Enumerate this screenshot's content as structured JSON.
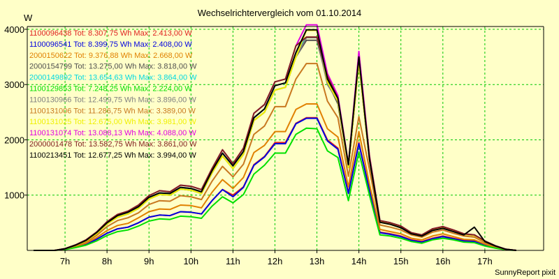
{
  "chart_data": {
    "type": "line",
    "title": "Wechselrichtervergleich vom 01.10.2014",
    "ylabel": "W",
    "xlabel": "",
    "credit": "SunnyReport pixit",
    "ylim": [
      0,
      4050
    ],
    "xlim": [
      6.1,
      18.4
    ],
    "yticks": [
      1000,
      2000,
      3000,
      4000
    ],
    "xticks": [
      {
        "value": 7,
        "label": "7h"
      },
      {
        "value": 8,
        "label": "8h"
      },
      {
        "value": 9,
        "label": "9h"
      },
      {
        "value": 10,
        "label": "10h"
      },
      {
        "value": 11,
        "label": "11h"
      },
      {
        "value": 12,
        "label": "12h"
      },
      {
        "value": 13,
        "label": "13h"
      },
      {
        "value": 14,
        "label": "14h"
      },
      {
        "value": 15,
        "label": "15h"
      },
      {
        "value": 16,
        "label": "16h"
      },
      {
        "value": 17,
        "label": "17h"
      }
    ],
    "grid": true,
    "legend_position": "top-left",
    "x": [
      6.25,
      6.5,
      6.75,
      7.0,
      7.25,
      7.5,
      7.75,
      8.0,
      8.25,
      8.5,
      8.75,
      9.0,
      9.25,
      9.5,
      9.75,
      10.0,
      10.25,
      10.5,
      10.75,
      11.0,
      11.25,
      11.5,
      11.75,
      12.0,
      12.25,
      12.5,
      12.75,
      13.0,
      13.25,
      13.5,
      13.75,
      14.0,
      14.25,
      14.5,
      14.75,
      15.0,
      15.25,
      15.5,
      15.75,
      16.0,
      16.25,
      16.5,
      16.75,
      17.0,
      17.25,
      17.5,
      17.75
    ],
    "series": [
      {
        "name": "1100096438",
        "color": "#e02020",
        "legend": "1100096438 Tot: 8.307,75 Wh Max: 2.413,00 W",
        "values": [
          0,
          0,
          0,
          20,
          60,
          110,
          200,
          310,
          390,
          420,
          500,
          600,
          640,
          630,
          700,
          690,
          660,
          900,
          1100,
          1000,
          1150,
          1550,
          1700,
          1950,
          1950,
          2300,
          2400,
          2400,
          2000,
          1850,
          1050,
          1950,
          1100,
          330,
          300,
          260,
          190,
          160,
          220,
          260,
          220,
          180,
          170,
          100,
          50,
          15,
          0
        ]
      },
      {
        "name": "1100096541",
        "color": "#0000e0",
        "legend": "1100096541 Tot: 8.399,75 Wh Max: 2.408,00 W",
        "values": [
          0,
          0,
          0,
          20,
          60,
          110,
          200,
          310,
          390,
          420,
          500,
          600,
          640,
          630,
          700,
          690,
          660,
          900,
          1100,
          970,
          1140,
          1540,
          1690,
          1930,
          1930,
          2290,
          2390,
          2390,
          1980,
          1830,
          1030,
          1930,
          1090,
          320,
          290,
          250,
          180,
          150,
          210,
          250,
          210,
          170,
          160,
          95,
          45,
          12,
          0
        ]
      },
      {
        "name": "2000150622",
        "color": "#e08000",
        "legend": "2000150622 Tot: 9.376,88 Wh Max: 2.668,00 W",
        "values": [
          0,
          0,
          0,
          25,
          70,
          130,
          230,
          360,
          450,
          490,
          590,
          700,
          750,
          740,
          820,
          810,
          770,
          1050,
          1280,
          1120,
          1320,
          1770,
          1900,
          2150,
          2150,
          2550,
          2650,
          2650,
          2200,
          2050,
          1150,
          2150,
          1200,
          380,
          340,
          300,
          220,
          190,
          260,
          300,
          250,
          200,
          190,
          115,
          55,
          15,
          0
        ]
      },
      {
        "name": "2000154799",
        "color": "#505050",
        "legend": "2000154799 Tot: 13.275,00 Wh Max: 3.818,00 W",
        "values": [
          0,
          0,
          0,
          30,
          90,
          170,
          300,
          480,
          600,
          660,
          760,
          930,
          1010,
          1000,
          1110,
          1090,
          1030,
          1400,
          1710,
          1480,
          1740,
          2350,
          2500,
          2900,
          2950,
          3500,
          3800,
          3800,
          3050,
          2650,
          1500,
          3400,
          1650,
          520,
          480,
          420,
          310,
          270,
          370,
          410,
          350,
          290,
          270,
          160,
          80,
          20,
          0
        ]
      },
      {
        "name": "2000149892",
        "color": "#00d8e0",
        "legend": "2000149892 Tot: 13.654,63 Wh Max: 3.864,00 W",
        "values": [
          0,
          0,
          0,
          30,
          95,
          180,
          320,
          500,
          630,
          690,
          790,
          960,
          1040,
          1030,
          1140,
          1120,
          1060,
          1440,
          1760,
          1530,
          1790,
          2400,
          2560,
          2980,
          3030,
          3580,
          3850,
          3850,
          3120,
          2720,
          1540,
          3480,
          1700,
          540,
          500,
          440,
          320,
          280,
          380,
          420,
          360,
          300,
          280,
          170,
          85,
          20,
          0
        ]
      },
      {
        "name": "1100129853",
        "color": "#00e000",
        "legend": "1100129853 Tot: 7.248,25 Wh Max: 2.224,00 W",
        "values": [
          0,
          0,
          0,
          15,
          50,
          95,
          170,
          270,
          340,
          370,
          440,
          530,
          570,
          560,
          620,
          610,
          580,
          800,
          970,
          860,
          1010,
          1380,
          1540,
          1760,
          1760,
          2100,
          2210,
          2200,
          1800,
          1680,
          900,
          1780,
          1000,
          280,
          260,
          220,
          160,
          130,
          190,
          220,
          190,
          150,
          140,
          80,
          40,
          10,
          0
        ]
      },
      {
        "name": "1100130966",
        "color": "#808080",
        "legend": "1100130966 Tot: 12.499,75 Wh Max: 3.896,00 W",
        "values": [
          0,
          0,
          0,
          30,
          90,
          170,
          300,
          480,
          600,
          660,
          760,
          930,
          1010,
          1000,
          1110,
          1090,
          1030,
          1400,
          1710,
          1480,
          1740,
          2350,
          2500,
          2900,
          2950,
          3500,
          3850,
          3850,
          3000,
          2700,
          1500,
          3400,
          1650,
          520,
          480,
          420,
          310,
          270,
          370,
          410,
          350,
          290,
          270,
          160,
          80,
          20,
          0
        ]
      },
      {
        "name": "1100131006",
        "color": "#c87820",
        "legend": "1100131006 Tot: 11.286,75 Wh Max: 3.389,00 W",
        "values": [
          0,
          0,
          0,
          28,
          80,
          150,
          270,
          430,
          540,
          590,
          680,
          830,
          900,
          890,
          990,
          970,
          920,
          1250,
          1520,
          1330,
          1560,
          2100,
          2250,
          2600,
          2600,
          3100,
          3380,
          3380,
          2700,
          2400,
          1340,
          2420,
          1470,
          460,
          420,
          370,
          280,
          240,
          330,
          370,
          310,
          260,
          240,
          140,
          70,
          18,
          0
        ]
      },
      {
        "name": "1100131025",
        "color": "#f0f000",
        "legend": "1100131025 Tot: 12.675,00 Wh Max: 3.981,00 W",
        "values": [
          0,
          0,
          0,
          30,
          90,
          170,
          300,
          480,
          600,
          660,
          760,
          930,
          1010,
          1000,
          1110,
          1090,
          1030,
          1400,
          1710,
          1480,
          1740,
          2350,
          2500,
          2900,
          2950,
          3500,
          3980,
          3980,
          3050,
          2700,
          1500,
          3400,
          1650,
          520,
          480,
          420,
          310,
          270,
          370,
          410,
          350,
          290,
          270,
          160,
          80,
          20,
          0
        ]
      },
      {
        "name": "1100131074",
        "color": "#e000e0",
        "legend": "1100131074 Tot: 13.088,13 Wh Max: 4.088,00 W",
        "values": [
          0,
          0,
          0,
          32,
          100,
          190,
          330,
          520,
          650,
          710,
          820,
          990,
          1080,
          1060,
          1180,
          1160,
          1100,
          1480,
          1820,
          1570,
          1850,
          2480,
          2640,
          3050,
          3100,
          3700,
          4080,
          4080,
          3200,
          2800,
          1560,
          3600,
          1720,
          540,
          500,
          440,
          320,
          280,
          390,
          430,
          370,
          300,
          280,
          170,
          85,
          22,
          0
        ]
      },
      {
        "name": "2000001478",
        "color": "#802020",
        "legend": "2000001478 Tot: 13.582,75 Wh Max: 3.861,00 W",
        "values": [
          0,
          0,
          0,
          32,
          100,
          190,
          330,
          520,
          650,
          710,
          820,
          990,
          1080,
          1060,
          1180,
          1160,
          1100,
          1480,
          1820,
          1570,
          1850,
          2480,
          2640,
          3050,
          3100,
          3700,
          3860,
          3860,
          3150,
          2750,
          1550,
          3500,
          1700,
          540,
          500,
          440,
          320,
          280,
          390,
          430,
          370,
          300,
          280,
          170,
          85,
          22,
          0
        ]
      },
      {
        "name": "1100213451",
        "color": "#000000",
        "legend": "1100213451 Tot: 12.677,25 Wh Max: 3.994,00 W",
        "values": [
          0,
          0,
          0,
          30,
          95,
          180,
          320,
          500,
          630,
          690,
          790,
          960,
          1040,
          1030,
          1140,
          1120,
          1060,
          1440,
          1760,
          1530,
          1790,
          2400,
          2560,
          2980,
          3030,
          3580,
          3990,
          3990,
          3100,
          2750,
          1550,
          3500,
          1650,
          510,
          470,
          410,
          300,
          260,
          360,
          400,
          340,
          280,
          420,
          160,
          80,
          20,
          0
        ]
      }
    ]
  }
}
